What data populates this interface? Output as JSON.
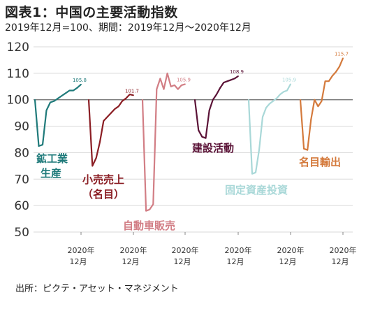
{
  "title": "図表1：中国の主要活動指数",
  "subtitle": "2019年12月=100、期間：2019年12月～2020年12月",
  "source": "出所：ピクテ・アセット・マネジメント",
  "chart_data": {
    "type": "line",
    "title": "図表1：中国の主要活動指数",
    "subtitle": "2019年12月=100、期間：2019年12月～2020年12月",
    "xlabel": "",
    "ylabel": "",
    "ylim": [
      50,
      120
    ],
    "yticks": [
      50,
      60,
      70,
      80,
      90,
      100,
      110,
      120
    ],
    "grid": "horizontal",
    "baseline": 100,
    "x": [
      "2019-12",
      "2020-01",
      "2020-02",
      "2020-03",
      "2020-04",
      "2020-05",
      "2020-06",
      "2020-07",
      "2020-08",
      "2020-09",
      "2020-10",
      "2020-11",
      "2020-12"
    ],
    "panel_x_label": [
      "2020年",
      "12月"
    ],
    "series": [
      {
        "name": "鉱工業生産",
        "label_lines": [
          "鉱工業",
          "生産"
        ],
        "color": "#1f7a7a",
        "values": [
          100,
          82.5,
          83,
          96,
          99,
          99.5,
          100.5,
          101.5,
          102.5,
          103.5,
          103.5,
          104.5,
          105.8
        ],
        "end_label": "105.8"
      },
      {
        "name": "小売売上（名目）",
        "label_lines": [
          "小売売上",
          "（名目）"
        ],
        "color": "#8b1e24",
        "values": [
          100,
          75,
          78,
          84,
          92,
          93.5,
          95,
          96.5,
          97.5,
          99.5,
          100.5,
          102,
          101.7
        ],
        "end_label": "101.7"
      },
      {
        "name": "自動車販売",
        "label_lines": [
          "自動車販売"
        ],
        "color": "#d27e85",
        "values": [
          100,
          58,
          58.5,
          60.5,
          104,
          108,
          104,
          110,
          105,
          105.5,
          104,
          105.5,
          105.9
        ],
        "end_label": "105.9"
      },
      {
        "name": "建設活動",
        "label_lines": [
          "建設活動"
        ],
        "color": "#5b1337",
        "values": [
          100,
          88.5,
          86,
          85.5,
          96,
          100,
          102,
          104.5,
          106.5,
          107,
          107.5,
          108,
          108.9
        ],
        "end_label": "108.9"
      },
      {
        "name": "固定資産投資",
        "label_lines": [
          "固定資産投資"
        ],
        "color": "#a9d8d8",
        "values": [
          100,
          72,
          72.5,
          81,
          93.5,
          97,
          98.5,
          99.5,
          100.5,
          102,
          103,
          103.5,
          105.9
        ],
        "end_label": "105.9"
      },
      {
        "name": "名目輸出",
        "label_lines": [
          "名目輸出"
        ],
        "color": "#d47a3c",
        "values": [
          100,
          81.5,
          81,
          92.5,
          100,
          97.5,
          99.5,
          107,
          107,
          109,
          110.5,
          112.5,
          115.7
        ],
        "end_label": "115.7"
      }
    ]
  }
}
